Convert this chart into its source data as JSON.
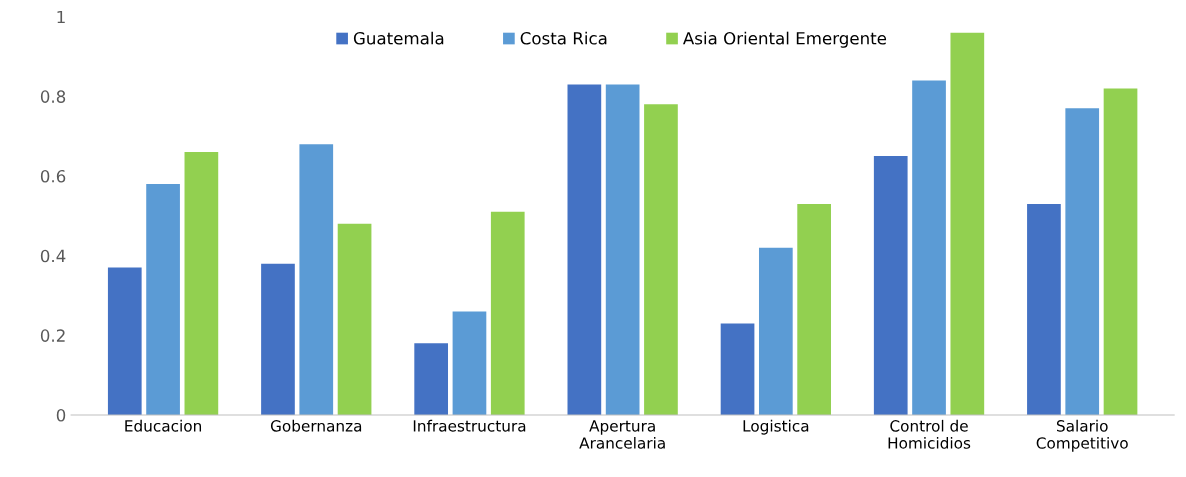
{
  "chart_data": {
    "type": "bar",
    "categories": [
      "Educacion",
      "Gobernanza",
      "Infraestructura",
      "Apertura\nArancelaria",
      "Logistica",
      "Control de\nHomicidios",
      "Salario\nCompetitivo"
    ],
    "series": [
      {
        "name": "Guatemala",
        "color": "#4472c4",
        "values": [
          0.37,
          0.38,
          0.18,
          0.83,
          0.23,
          0.65,
          0.53
        ]
      },
      {
        "name": "Costa Rica",
        "color": "#5b9bd5",
        "values": [
          0.58,
          0.68,
          0.26,
          0.83,
          0.42,
          0.84,
          0.77
        ]
      },
      {
        "name": "Asia Oriental Emergente",
        "color": "#92d050",
        "values": [
          0.66,
          0.48,
          0.51,
          0.78,
          0.53,
          0.96,
          0.82
        ]
      }
    ],
    "ylim": [
      0,
      1
    ],
    "yticks": [
      0,
      0.2,
      0.4,
      0.6,
      0.8,
      1
    ],
    "grid": false,
    "legend": "top"
  }
}
